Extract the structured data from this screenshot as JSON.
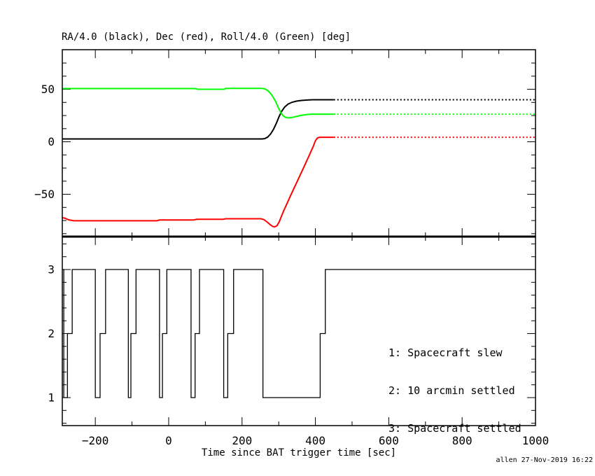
{
  "title": "RA/4.0 (black), Dec (red), Roll/4.0 (Green) [deg]",
  "xlabel": "Time since BAT trigger time [sec]",
  "credit": "allen 27-Nov-2019 16:22",
  "colors": {
    "ra": "#000000",
    "dec": "#ff0000",
    "roll": "#00ff00",
    "frame": "#000000"
  },
  "chart_data": [
    {
      "type": "line",
      "title": "RA/4.0 (black), Dec (red), Roll/4.0 (Green) [deg]",
      "xlim": [
        -290,
        1000
      ],
      "ylim": [
        -90.3,
        87.7
      ],
      "xticks_major": [
        -200,
        0,
        200,
        400,
        600,
        800,
        1000
      ],
      "xticks_minor": [
        -100,
        100,
        300,
        500,
        700,
        900
      ],
      "yticks_major": [
        50,
        0,
        -50
      ],
      "yticks_minor": [
        75,
        62.5,
        37.5,
        25,
        12.5,
        -12.5,
        -25,
        -37.5,
        -62.5,
        -75,
        -87.5
      ],
      "grid": false,
      "series": [
        {
          "name": "RA/4.0",
          "color": "#000000",
          "solid_points": [
            [
              -290,
              2.7
            ],
            [
              255,
              2.7
            ],
            [
              262,
              3.0
            ],
            [
              270,
              4.5
            ],
            [
              278,
              7.5
            ],
            [
              286,
              12
            ],
            [
              294,
              18
            ],
            [
              301,
              24
            ],
            [
              308,
              29
            ],
            [
              316,
              33
            ],
            [
              325,
              35.8
            ],
            [
              336,
              37.6
            ],
            [
              348,
              38.7
            ],
            [
              362,
              39.4
            ],
            [
              378,
              39.8
            ],
            [
              392,
              40
            ],
            [
              450,
              40
            ]
          ],
          "dotted_points": [
            [
              450,
              40
            ],
            [
              1000,
              40
            ]
          ]
        },
        {
          "name": "Dec",
          "color": "#ff0000",
          "solid_points": [
            [
              -290,
              -72.4
            ],
            [
              -284,
              -72.6
            ],
            [
              -272,
              -74.4
            ],
            [
              -258,
              -75.2
            ],
            [
              -32,
              -75.2
            ],
            [
              -25,
              -74.5
            ],
            [
              68,
              -74.5
            ],
            [
              76,
              -73.8
            ],
            [
              148,
              -73.8
            ],
            [
              156,
              -73.3
            ],
            [
              252,
              -73.3
            ],
            [
              260,
              -74.2
            ],
            [
              268,
              -76.3
            ],
            [
              277,
              -79
            ],
            [
              284,
              -80.7
            ],
            [
              289,
              -81
            ],
            [
              295,
              -80
            ],
            [
              301,
              -76.5
            ],
            [
              312,
              -67
            ],
            [
              330,
              -53
            ],
            [
              350,
              -38
            ],
            [
              370,
              -23
            ],
            [
              385,
              -11.5
            ],
            [
              394,
              -4.5
            ],
            [
              400,
              1
            ],
            [
              406,
              3.8
            ],
            [
              412,
              4.3
            ],
            [
              450,
              4.3
            ]
          ],
          "dotted_points": [
            [
              450,
              4.3
            ],
            [
              1000,
              4.3
            ]
          ]
        },
        {
          "name": "Roll/4.0",
          "color": "#00ff00",
          "solid_points": [
            [
              -290,
              50.7
            ],
            [
              74,
              50.7
            ],
            [
              78,
              50.0
            ],
            [
              152,
              50.0
            ],
            [
              156,
              50.9
            ],
            [
              254,
              50.9
            ],
            [
              261,
              50.5
            ],
            [
              268,
              49.3
            ],
            [
              276,
              46.8
            ],
            [
              284,
              43
            ],
            [
              292,
              38
            ],
            [
              299,
              32.5
            ],
            [
              306,
              27.5
            ],
            [
              312,
              24.8
            ],
            [
              318,
              23.4
            ],
            [
              325,
              22.8
            ],
            [
              334,
              23
            ],
            [
              348,
              24.1
            ],
            [
              362,
              25.2
            ],
            [
              378,
              26
            ],
            [
              392,
              26.3
            ],
            [
              450,
              26.3
            ]
          ],
          "dotted_points": [
            [
              450,
              26.3
            ],
            [
              1000,
              26.3
            ]
          ]
        }
      ]
    },
    {
      "type": "step",
      "xlim": [
        -290,
        1000
      ],
      "ylim": [
        0.563,
        3.514
      ],
      "xticks_major": [
        -200,
        0,
        200,
        400,
        600,
        800,
        1000
      ],
      "xticks_minor": [
        -100,
        100,
        300,
        500,
        700,
        900
      ],
      "yticks_major": [
        3,
        2,
        1
      ],
      "yticks_minor": [
        3.4,
        3.2,
        2.8,
        2.6,
        2.4,
        2.2,
        1.8,
        1.6,
        1.4,
        1.2,
        0.8,
        0.6
      ],
      "grid": false,
      "xlabel": "Time since BAT trigger time [sec]",
      "legend": [
        "1: Spacecraft slew",
        "2: 10 arcmin settled",
        "3: Spacecraft settled"
      ],
      "legend_position": "center-right",
      "series": [
        {
          "name": "settling-status",
          "color": "#000000",
          "steps": [
            [
              -290,
              3
            ],
            [
              -286,
              1
            ],
            [
              -276,
              2
            ],
            [
              -263,
              3
            ],
            [
              -200,
              1
            ],
            [
              -187,
              2
            ],
            [
              -172,
              3
            ],
            [
              -110,
              1
            ],
            [
              -103,
              2
            ],
            [
              -89,
              3
            ],
            [
              -25,
              1
            ],
            [
              -17,
              2
            ],
            [
              -5,
              3
            ],
            [
              61,
              1
            ],
            [
              72,
              2
            ],
            [
              84,
              3
            ],
            [
              150,
              1
            ],
            [
              161,
              2
            ],
            [
              177,
              3
            ],
            [
              257,
              1
            ],
            [
              413,
              2
            ],
            [
              427,
              3
            ]
          ],
          "end_time": 1000
        }
      ]
    }
  ]
}
